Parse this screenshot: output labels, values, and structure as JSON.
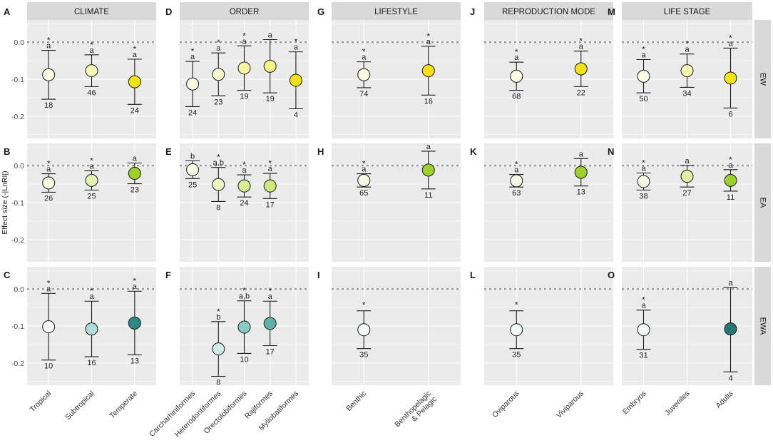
{
  "chart_data": {
    "type": "scatter",
    "description_mode": "dot-and-whisker facet grid",
    "ylabel": "Effect size (-|LnRI|)",
    "ylim": [
      -0.26,
      0.06
    ],
    "yticks": [
      0.0,
      -0.1,
      -0.2
    ],
    "ytick_labels": [
      "0.0",
      "-0.1",
      "-0.2"
    ],
    "reference_line": 0.0,
    "rows": [
      "EW",
      "EA",
      "EWA"
    ],
    "columns": [
      {
        "title": "CLIMATE",
        "categories": [
          "Tropical",
          "Subtropical",
          "Temperate"
        ]
      },
      {
        "title": "ORDER",
        "categories": [
          "Carcharhiniformes",
          "Heterodontiformes",
          "Orectolobiformes",
          "Rajiformes",
          "Myliobatiformes"
        ]
      },
      {
        "title": "LIFESTYLE",
        "categories": [
          "Benthic",
          "Benthopelagic\n& Pelagic"
        ]
      },
      {
        "title": "REPRODUCTION MODE",
        "categories": [
          "Oviparous",
          "Viviparous"
        ]
      },
      {
        "title": "LIFE STAGE",
        "categories": [
          "Embryos",
          "Juveniles",
          "Adults"
        ]
      }
    ],
    "panel_letters": [
      [
        "A",
        "D",
        "G",
        "J",
        "M"
      ],
      [
        "B",
        "E",
        "H",
        "K",
        "N"
      ],
      [
        "C",
        "F",
        "I",
        "L",
        "O"
      ]
    ],
    "colors": {
      "panel_bg": "#ebebeb",
      "grid": "#ffffff",
      "strip_bg": "#d9d9d9",
      "ref_line": "#999999",
      "marker_stroke": "#1a1a1a",
      "text": "#1a1a1a"
    },
    "panels": [
      [
        {
          "points": [
            {
              "cat": 0,
              "y": -0.088,
              "lo": -0.154,
              "hi": -0.022,
              "n": "18",
              "letter": "a",
              "star": true,
              "color": "#fdfde6"
            },
            {
              "cat": 1,
              "y": -0.077,
              "lo": -0.12,
              "hi": -0.034,
              "n": "46",
              "letter": "a",
              "star": true,
              "color": "#f7f7b6"
            },
            {
              "cat": 2,
              "y": -0.107,
              "lo": -0.168,
              "hi": -0.046,
              "n": "24",
              "letter": "a",
              "star": true,
              "color": "#f5e11a"
            }
          ]
        },
        {
          "points": [
            {
              "cat": 0,
              "y": -0.113,
              "lo": -0.174,
              "hi": -0.052,
              "n": "24",
              "letter": "a",
              "star": true,
              "color": "#fdfde6"
            },
            {
              "cat": 1,
              "y": -0.087,
              "lo": -0.145,
              "hi": -0.029,
              "n": "23",
              "letter": "a",
              "star": true,
              "color": "#fbfbd0"
            },
            {
              "cat": 2,
              "y": -0.07,
              "lo": -0.13,
              "hi": -0.01,
              "n": "19",
              "letter": "a",
              "star": true,
              "color": "#f8f6a0"
            },
            {
              "cat": 3,
              "y": -0.065,
              "lo": -0.137,
              "hi": 0.007,
              "n": "19",
              "letter": "a",
              "star": false,
              "color": "#f6f085"
            },
            {
              "cat": 4,
              "y": -0.103,
              "lo": -0.18,
              "hi": -0.026,
              "n": "4",
              "letter": "a",
              "star": true,
              "color": "#f5e11a"
            }
          ]
        },
        {
          "points": [
            {
              "cat": 0,
              "y": -0.088,
              "lo": -0.123,
              "hi": -0.053,
              "n": "74",
              "letter": "a",
              "star": true,
              "color": "#fdfde6"
            },
            {
              "cat": 1,
              "y": -0.077,
              "lo": -0.143,
              "hi": -0.011,
              "n": "16",
              "letter": "a",
              "star": true,
              "color": "#f5e11a"
            }
          ]
        },
        {
          "points": [
            {
              "cat": 0,
              "y": -0.092,
              "lo": -0.13,
              "hi": -0.054,
              "n": "68",
              "letter": "a",
              "star": true,
              "color": "#fdfde6"
            },
            {
              "cat": 1,
              "y": -0.072,
              "lo": -0.12,
              "hi": -0.024,
              "n": "22",
              "letter": "a",
              "star": true,
              "color": "#f5e11a"
            }
          ]
        },
        {
          "points": [
            {
              "cat": 0,
              "y": -0.092,
              "lo": -0.137,
              "hi": -0.047,
              "n": "50",
              "letter": "a",
              "star": true,
              "color": "#fdfde6"
            },
            {
              "cat": 1,
              "y": -0.077,
              "lo": -0.122,
              "hi": -0.032,
              "n": "34",
              "letter": "a",
              "star": true,
              "color": "#f7f7b6"
            },
            {
              "cat": 2,
              "y": -0.097,
              "lo": -0.178,
              "hi": -0.016,
              "n": "6",
              "letter": "a",
              "star": true,
              "color": "#f5e11a"
            }
          ]
        }
      ],
      [
        {
          "points": [
            {
              "cat": 0,
              "y": -0.047,
              "lo": -0.072,
              "hi": -0.022,
              "n": "26",
              "letter": "a",
              "star": true,
              "color": "#f8fbe4"
            },
            {
              "cat": 1,
              "y": -0.04,
              "lo": -0.066,
              "hi": -0.014,
              "n": "25",
              "letter": "a",
              "star": true,
              "color": "#e6f2b1"
            },
            {
              "cat": 2,
              "y": -0.021,
              "lo": -0.049,
              "hi": 0.007,
              "n": "23",
              "letter": "a",
              "star": false,
              "color": "#9cd02c"
            }
          ]
        },
        {
          "points": [
            {
              "cat": 0,
              "y": -0.011,
              "lo": -0.035,
              "hi": 0.013,
              "n": "25",
              "letter": "b",
              "star": false,
              "color": "#f8fbe4"
            },
            {
              "cat": 1,
              "y": -0.051,
              "lo": -0.097,
              "hi": -0.005,
              "n": "8",
              "letter": "a,b",
              "star": true,
              "color": "#ecf5c4"
            },
            {
              "cat": 2,
              "y": -0.055,
              "lo": -0.085,
              "hi": -0.025,
              "n": "24",
              "letter": "a",
              "star": true,
              "color": "#d8ec93"
            },
            {
              "cat": 3,
              "y": -0.055,
              "lo": -0.089,
              "hi": -0.021,
              "n": "17",
              "letter": "a",
              "star": true,
              "color": "#cde87c"
            }
          ]
        },
        {
          "points": [
            {
              "cat": 0,
              "y": -0.04,
              "lo": -0.058,
              "hi": -0.022,
              "n": "65",
              "letter": "a",
              "star": true,
              "color": "#f8fbe4"
            },
            {
              "cat": 1,
              "y": -0.012,
              "lo": -0.063,
              "hi": 0.039,
              "n": "11",
              "letter": "a",
              "star": false,
              "color": "#9cd02c"
            }
          ]
        },
        {
          "points": [
            {
              "cat": 0,
              "y": -0.041,
              "lo": -0.058,
              "hi": -0.024,
              "n": "63",
              "letter": "a",
              "star": true,
              "color": "#f8fbe4"
            },
            {
              "cat": 1,
              "y": -0.018,
              "lo": -0.055,
              "hi": 0.019,
              "n": "13",
              "letter": "a",
              "star": false,
              "color": "#9cd02c"
            }
          ]
        },
        {
          "points": [
            {
              "cat": 0,
              "y": -0.043,
              "lo": -0.066,
              "hi": -0.02,
              "n": "38",
              "letter": "a",
              "star": true,
              "color": "#f8fbe4"
            },
            {
              "cat": 1,
              "y": -0.029,
              "lo": -0.058,
              "hi": 0.0,
              "n": "27",
              "letter": "a",
              "star": false,
              "color": "#dff0a4"
            },
            {
              "cat": 2,
              "y": -0.04,
              "lo": -0.069,
              "hi": -0.011,
              "n": "11",
              "letter": "a",
              "star": true,
              "color": "#9cd02c"
            }
          ]
        }
      ],
      [
        {
          "points": [
            {
              "cat": 0,
              "y": -0.102,
              "lo": -0.192,
              "hi": -0.012,
              "n": "10",
              "letter": "a",
              "star": true,
              "color": "#f4faf8"
            },
            {
              "cat": 1,
              "y": -0.108,
              "lo": -0.183,
              "hi": -0.033,
              "n": "16",
              "letter": "a",
              "star": true,
              "color": "#b2dcd8"
            },
            {
              "cat": 2,
              "y": -0.092,
              "lo": -0.178,
              "hi": -0.006,
              "n": "13",
              "letter": "a",
              "star": true,
              "color": "#2a8a86"
            }
          ]
        },
        {
          "points": [
            {
              "cat": 1,
              "y": -0.162,
              "lo": -0.236,
              "hi": -0.088,
              "n": "8",
              "letter": "b",
              "star": true,
              "color": "#d2ebe8"
            },
            {
              "cat": 2,
              "y": -0.103,
              "lo": -0.174,
              "hi": -0.032,
              "n": "10",
              "letter": "a,b",
              "star": true,
              "color": "#8acbc6"
            },
            {
              "cat": 3,
              "y": -0.093,
              "lo": -0.153,
              "hi": -0.033,
              "n": "17",
              "letter": "a",
              "star": true,
              "color": "#5fb0aa"
            }
          ]
        },
        {
          "points": [
            {
              "cat": 0,
              "y": -0.11,
              "lo": -0.161,
              "hi": -0.059,
              "n": "35",
              "letter": "",
              "star": true,
              "color": "#f4faf8"
            }
          ]
        },
        {
          "points": [
            {
              "cat": 0,
              "y": -0.11,
              "lo": -0.161,
              "hi": -0.059,
              "n": "35",
              "letter": "",
              "star": true,
              "color": "#f4faf8"
            }
          ]
        },
        {
          "points": [
            {
              "cat": 0,
              "y": -0.11,
              "lo": -0.163,
              "hi": -0.057,
              "n": "31",
              "letter": "a",
              "star": true,
              "color": "#f4faf8"
            },
            {
              "cat": 2,
              "y": -0.108,
              "lo": -0.224,
              "hi": 0.004,
              "n": "4",
              "letter": "a",
              "star": false,
              "color": "#237873"
            }
          ]
        }
      ]
    ]
  }
}
